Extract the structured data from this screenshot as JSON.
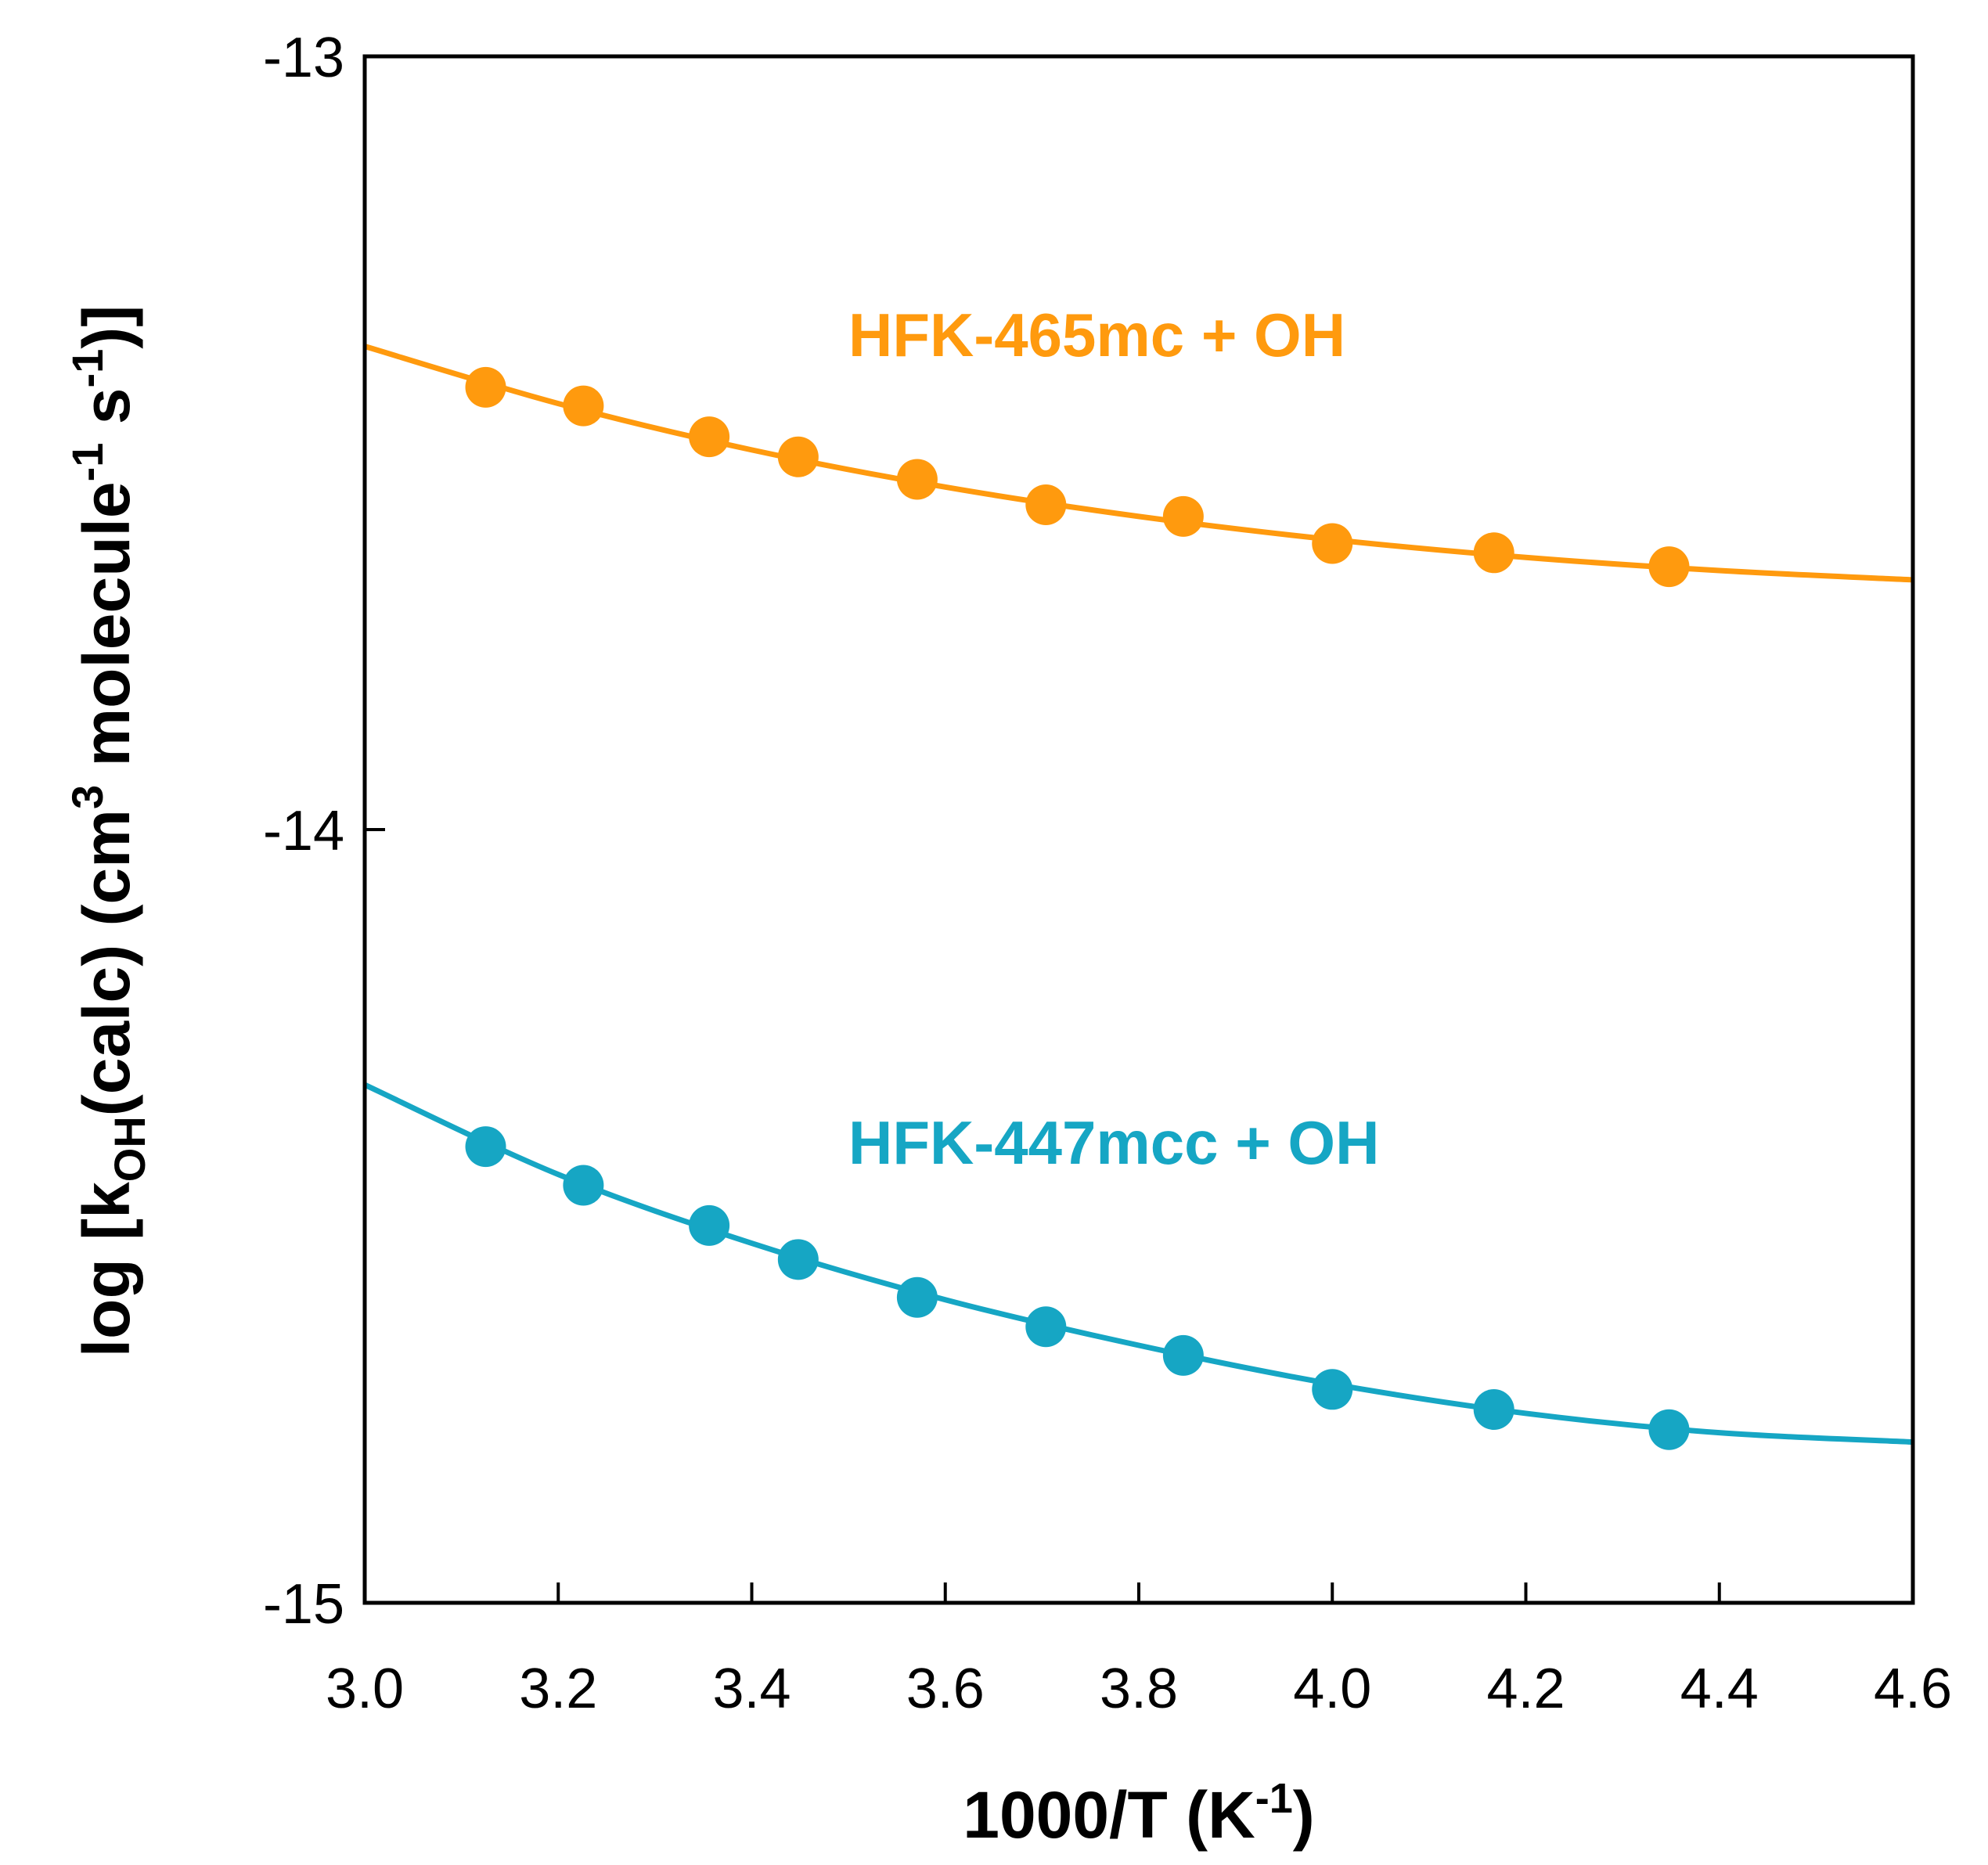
{
  "chart_data": {
    "type": "line",
    "title": "",
    "xlabel": {
      "main": "1000/T (K",
      "sup": "-1",
      "tail": ")"
    },
    "ylabel": {
      "p1": "log [k",
      "sub1": "OH",
      "p2": "(calc) (cm",
      "sup1": "3",
      "p3": " molecule",
      "sup2": "-1",
      "p4": " s",
      "sup3": "-1",
      "p5": ")]"
    },
    "xlim": [
      3.0,
      4.6
    ],
    "ylim": [
      -15,
      -13
    ],
    "x_ticks": [
      3.0,
      3.2,
      3.4,
      3.6,
      3.8,
      4.0,
      4.2,
      4.4,
      4.6
    ],
    "x_tick_labels": [
      "3.0",
      "3.2",
      "3.4",
      "3.6",
      "3.8",
      "4.0",
      "4.2",
      "4.4",
      "4.6"
    ],
    "y_ticks": [
      -13,
      -14,
      -15
    ],
    "y_tick_labels": [
      "-13",
      "-14",
      "-15"
    ],
    "grid": false,
    "series": [
      {
        "name": "HFK-465mc + OH",
        "color": "#FF9A0E",
        "points": {
          "x": [
            3.125,
            3.226,
            3.356,
            3.448,
            3.571,
            3.704,
            3.846,
            4.0,
            4.167,
            4.348
          ],
          "y": [
            -13.428,
            -13.452,
            -13.492,
            -13.518,
            -13.547,
            -13.58,
            -13.595,
            -13.63,
            -13.642,
            -13.66
          ]
        },
        "fit_curve": {
          "x": [
            3.0,
            3.2,
            3.4,
            3.6,
            3.8,
            4.0,
            4.2,
            4.4,
            4.6
          ],
          "y": [
            -13.375,
            -13.449,
            -13.509,
            -13.557,
            -13.595,
            -13.625,
            -13.648,
            -13.665,
            -13.677
          ]
        }
      },
      {
        "name": "HFK-447mcc + OH",
        "color": "#16A6C4",
        "points": {
          "x": [
            3.125,
            3.226,
            3.356,
            3.448,
            3.571,
            3.704,
            3.846,
            4.0,
            4.167,
            4.348
          ],
          "y": [
            -14.41,
            -14.46,
            -14.512,
            -14.556,
            -14.605,
            -14.643,
            -14.68,
            -14.724,
            -14.75,
            -14.776
          ]
        },
        "fit_curve": {
          "x": [
            3.0,
            3.2,
            3.4,
            3.6,
            3.8,
            4.0,
            4.2,
            4.4,
            4.6
          ],
          "y": [
            -14.33,
            -14.446,
            -14.535,
            -14.608,
            -14.667,
            -14.717,
            -14.755,
            -14.78,
            -14.792
          ]
        }
      }
    ]
  }
}
